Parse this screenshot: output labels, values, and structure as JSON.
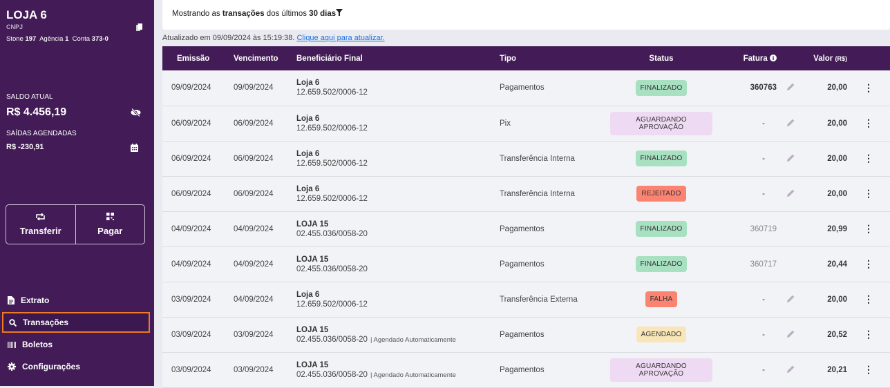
{
  "sidebar": {
    "store_name": "LOJA 6",
    "cnpj_label": "CNPJ",
    "bank_label": "Stone",
    "bank": "197",
    "agency_label": "Agência",
    "agency": "1",
    "account_label": "Conta",
    "account": "373-0",
    "balance_label": "SALDO ATUAL",
    "balance": "R$ 4.456,19",
    "scheduled_label": "SAÍDAS AGENDADAS",
    "scheduled": "R$ -230,91",
    "transfer": "Transferir",
    "pay": "Pagar",
    "nav": [
      {
        "label": "Extrato",
        "icon": "document-icon"
      },
      {
        "label": "Transações",
        "icon": "search-icon",
        "active": true
      },
      {
        "label": "Boletos",
        "icon": "barcode-icon"
      },
      {
        "label": "Configurações",
        "icon": "gear-icon"
      }
    ]
  },
  "filter": {
    "prefix": "Mostrando as ",
    "bold": "transações",
    "middle": " dos últimos ",
    "period": "30 dias"
  },
  "updated": {
    "text": "Atualizado em 09/09/2024 às 15:19:38.",
    "link": "Clique aqui para atualizar."
  },
  "table": {
    "headers": {
      "emissao": "Emissão",
      "vencimento": "Vencimento",
      "beneficiario": "Beneficiário Final",
      "tipo": "Tipo",
      "status": "Status",
      "fatura": "Fatura",
      "valor": "Valor",
      "valor_unit": "(R$)"
    },
    "rows": [
      {
        "emissao": "09/09/2024",
        "vencimento": "09/09/2024",
        "nome": "Loja 6",
        "doc": "12.659.502/0006-12",
        "nota": "",
        "tipo": "Pagamentos",
        "status": "FINALIZADO",
        "status_color": "#a8e0c2",
        "fatura": "360763",
        "fatura_dark": true,
        "editable": true,
        "valor": "20,00"
      },
      {
        "emissao": "06/09/2024",
        "vencimento": "06/09/2024",
        "nome": "Loja 6",
        "doc": "12.659.502/0006-12",
        "nota": "",
        "tipo": "Pix",
        "status": "AGUARDANDO APROVAÇÃO",
        "status_color": "#efdaf3",
        "fatura": "-",
        "fatura_dark": true,
        "editable": true,
        "valor": "20,00"
      },
      {
        "emissao": "06/09/2024",
        "vencimento": "06/09/2024",
        "nome": "Loja 6",
        "doc": "12.659.502/0006-12",
        "nota": "",
        "tipo": "Transferência Interna",
        "status": "FINALIZADO",
        "status_color": "#a8e0c2",
        "fatura": "-",
        "fatura_dark": true,
        "editable": true,
        "valor": "20,00"
      },
      {
        "emissao": "06/09/2024",
        "vencimento": "06/09/2024",
        "nome": "Loja 6",
        "doc": "12.659.502/0006-12",
        "nota": "",
        "tipo": "Transferência Interna",
        "status": "REJEITADO",
        "status_color": "#fa8372",
        "fatura": "-",
        "fatura_dark": true,
        "editable": true,
        "valor": "20,00"
      },
      {
        "emissao": "04/09/2024",
        "vencimento": "04/09/2024",
        "nome": "LOJA 15",
        "doc": "02.455.036/0058-20",
        "nota": "",
        "tipo": "Pagamentos",
        "status": "FINALIZADO",
        "status_color": "#a8e0c2",
        "fatura": "360719",
        "fatura_dark": false,
        "editable": false,
        "valor": "20,99"
      },
      {
        "emissao": "04/09/2024",
        "vencimento": "04/09/2024",
        "nome": "LOJA 15",
        "doc": "02.455.036/0058-20",
        "nota": "",
        "tipo": "Pagamentos",
        "status": "FINALIZADO",
        "status_color": "#a8e0c2",
        "fatura": "360717",
        "fatura_dark": false,
        "editable": false,
        "valor": "20,44"
      },
      {
        "emissao": "03/09/2024",
        "vencimento": "04/09/2024",
        "nome": "Loja 6",
        "doc": "12.659.502/0006-12",
        "nota": "",
        "tipo": "Transferência Externa",
        "status": "FALHA",
        "status_color": "#fa8372",
        "fatura": "-",
        "fatura_dark": true,
        "editable": true,
        "valor": "20,00"
      },
      {
        "emissao": "03/09/2024",
        "vencimento": "03/09/2024",
        "nome": "LOJA 15",
        "doc": "02.455.036/0058-20",
        "nota": "| Agendado Automaticamente",
        "tipo": "Pagamentos",
        "status": "AGENDADO",
        "status_color": "#f8e6b8",
        "fatura": "-",
        "fatura_dark": true,
        "editable": true,
        "valor": "20,52"
      },
      {
        "emissao": "03/09/2024",
        "vencimento": "03/09/2024",
        "nome": "LOJA 15",
        "doc": "02.455.036/0058-20",
        "nota": "| Agendado Automaticamente",
        "tipo": "Pagamentos",
        "status": "AGUARDANDO APROVAÇÃO",
        "status_color": "#efdaf3",
        "fatura": "-",
        "fatura_dark": true,
        "editable": true,
        "valor": "20,21"
      }
    ]
  }
}
